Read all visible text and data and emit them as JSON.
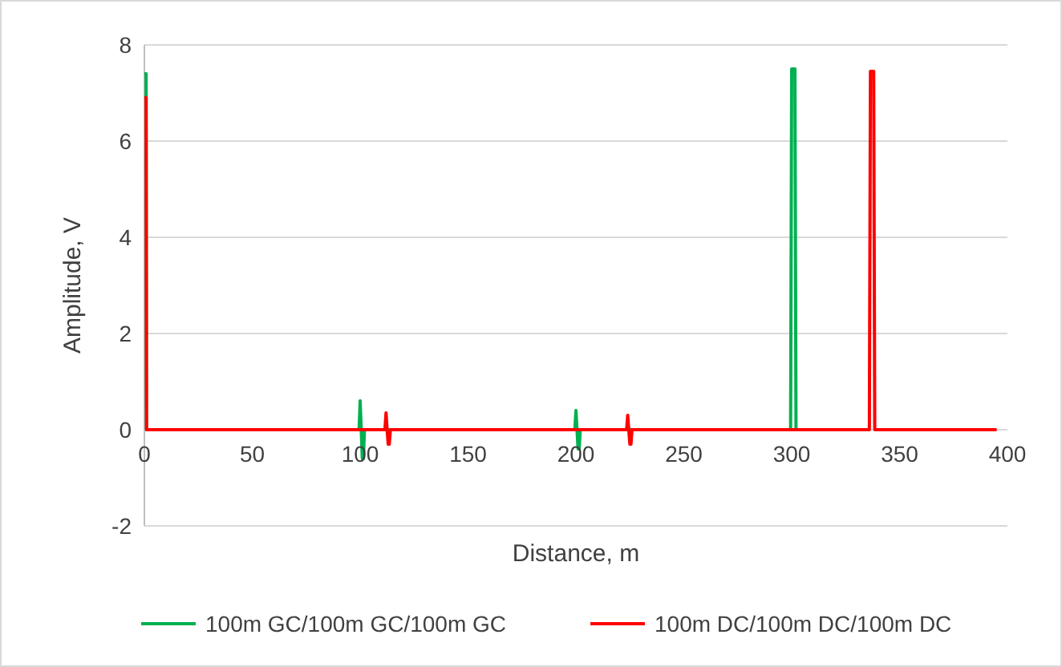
{
  "chart_data": {
    "type": "line",
    "xlabel": "Distance, m",
    "ylabel": "Amplitude, V",
    "xlim": [
      0,
      400
    ],
    "xticks": [
      0,
      50,
      100,
      150,
      200,
      250,
      300,
      350,
      400
    ],
    "ylim": [
      -2,
      8
    ],
    "yticks": [
      -2,
      0,
      2,
      4,
      6,
      8
    ],
    "grid": "y",
    "legend": "bottom",
    "marker": "none",
    "line_style": "solid",
    "series": [
      {
        "name": "100m GC/100m GC/100m GC",
        "color": "#00b050",
        "x": [
          0,
          0.8,
          1,
          99.5,
          100,
          100.5,
          101,
          101.5,
          102,
          199.5,
          200,
          200.5,
          201,
          201.5,
          202,
          299.5,
          300,
          301.5,
          302
        ],
        "values": [
          7.4,
          7.4,
          0,
          0,
          0.6,
          0,
          -0.6,
          -0.6,
          0,
          0,
          0.4,
          0,
          -0.4,
          -0.4,
          0,
          0,
          7.5,
          7.5,
          0
        ]
      },
      {
        "name": "100m DC/100m DC/100m DC",
        "color": "#ff0000",
        "x": [
          0,
          0.8,
          1,
          111.5,
          112,
          112.5,
          113,
          113.5,
          114,
          223.5,
          224,
          224.5,
          225,
          225.5,
          226,
          336,
          336.5,
          338,
          338.5,
          395
        ],
        "values": [
          6.9,
          6.9,
          0,
          0,
          0.35,
          0,
          -0.3,
          -0.3,
          0,
          0,
          0.3,
          0,
          -0.3,
          -0.3,
          0,
          0,
          7.45,
          7.45,
          0,
          0
        ]
      }
    ]
  }
}
